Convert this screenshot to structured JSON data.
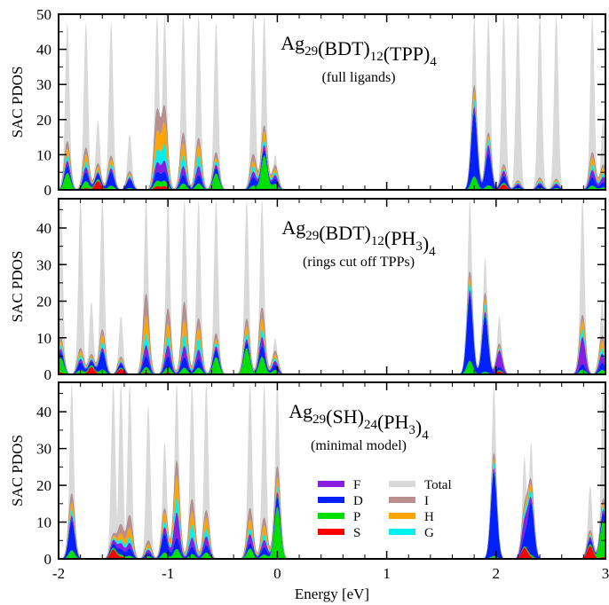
{
  "chart_data": {
    "type": "area",
    "xlabel": "Energy [eV]",
    "ylabel": "SAC PDOS",
    "xlim": [
      -2,
      3
    ],
    "x_ticks": [
      "-2",
      "-1",
      "0",
      "1",
      "2",
      "3"
    ],
    "stack_order": [
      "S",
      "P",
      "D",
      "F",
      "G",
      "H",
      "I"
    ],
    "colors": {
      "S": "#ff0000",
      "P": "#00e000",
      "D": "#0020ff",
      "F": "#8a1ee0",
      "G": "#00f0f0",
      "H": "#ffa500",
      "I": "#bc8f8f",
      "Total": "#d9d9d9"
    },
    "legend": {
      "placement": "bottom-panel-center",
      "left": [
        "F",
        "D",
        "P",
        "S"
      ],
      "right": [
        "Total",
        "I",
        "H",
        "G"
      ]
    },
    "panels": [
      {
        "id": "full",
        "title_main": "Ag",
        "title_parts": [
          {
            "t": "Ag"
          },
          {
            "t": "29",
            "sub": true
          },
          {
            "t": "(BDT)"
          },
          {
            "t": "12",
            "sub": true
          },
          {
            "t": "(TPP)"
          },
          {
            "t": "4",
            "sub": true
          }
        ],
        "subtitle": "(full ligands)",
        "ylim": [
          0,
          50
        ],
        "y_ticks": [
          0,
          10,
          20,
          30,
          40,
          50
        ],
        "peaks": [
          {
            "e": -1.92,
            "S": 0.3,
            "P": 4.5,
            "D": 2.0,
            "F": 1.5,
            "G": 1.5,
            "H": 2.0,
            "I": 2.0,
            "T": 48
          },
          {
            "e": -1.75,
            "S": 0.5,
            "P": 2.0,
            "D": 2.5,
            "F": 1.5,
            "G": 1.5,
            "H": 2.0,
            "I": 2.0,
            "T": 48
          },
          {
            "e": -1.64,
            "S": 2.5,
            "P": 0.5,
            "D": 1.5,
            "F": 0.5,
            "G": 0.5,
            "H": 1.0,
            "I": 1.0,
            "T": 20
          },
          {
            "e": -1.52,
            "S": 0.2,
            "P": 1.0,
            "D": 4.0,
            "F": 1.0,
            "G": 1.0,
            "H": 1.5,
            "I": 1.0,
            "T": 48
          },
          {
            "e": -1.35,
            "S": 0.0,
            "P": 0.5,
            "D": 2.5,
            "F": 0.5,
            "G": 0.5,
            "H": 0.5,
            "I": 0.8,
            "T": 16
          },
          {
            "e": -1.1,
            "S": 1.0,
            "P": 1.5,
            "D": 2.5,
            "F": 2.5,
            "G": 3.5,
            "H": 5.0,
            "I": 6.0,
            "T": 50
          },
          {
            "e": -1.03,
            "S": 1.0,
            "P": 1.5,
            "D": 2.5,
            "F": 3.0,
            "G": 4.5,
            "H": 6.0,
            "I": 4.5,
            "T": 50
          },
          {
            "e": -0.86,
            "S": 0.3,
            "P": 1.5,
            "D": 2.5,
            "F": 2.5,
            "G": 3.0,
            "H": 3.5,
            "I": 3.0,
            "T": 50
          },
          {
            "e": -0.72,
            "S": 0.3,
            "P": 1.5,
            "D": 2.5,
            "F": 2.5,
            "G": 3.0,
            "H": 3.0,
            "I": 2.0,
            "T": 50
          },
          {
            "e": -0.56,
            "S": 0.2,
            "P": 4.5,
            "D": 1.5,
            "F": 1.0,
            "G": 1.0,
            "H": 1.0,
            "I": 1.5,
            "T": 48
          },
          {
            "e": -0.22,
            "S": 0.2,
            "P": 1.0,
            "D": 2.5,
            "F": 1.5,
            "G": 1.5,
            "H": 1.5,
            "I": 2.0,
            "T": 50
          },
          {
            "e": -0.12,
            "S": 0.3,
            "P": 9.5,
            "D": 1.5,
            "F": 1.5,
            "G": 1.5,
            "H": 2.5,
            "I": 1.5,
            "T": 50
          },
          {
            "e": -0.02,
            "S": 0.2,
            "P": 1.5,
            "D": 1.5,
            "F": 1.0,
            "G": 0.8,
            "H": 1.0,
            "I": 1.0,
            "T": 10
          },
          {
            "e": 1.8,
            "S": 0.3,
            "P": 3.5,
            "D": 18.0,
            "F": 2.0,
            "G": 2.0,
            "H": 2.0,
            "I": 2.0,
            "T": 50
          },
          {
            "e": 1.93,
            "S": 0.3,
            "P": 1.0,
            "D": 9.0,
            "F": 2.5,
            "G": 1.5,
            "H": 1.0,
            "I": 1.0,
            "T": 50
          },
          {
            "e": 2.07,
            "S": 1.5,
            "P": 0.5,
            "D": 2.0,
            "F": 1.5,
            "G": 0.5,
            "H": 0.5,
            "I": 0.8,
            "T": 50
          },
          {
            "e": 2.2,
            "S": 0.2,
            "P": 0.3,
            "D": 0.8,
            "F": 0.5,
            "G": 0.3,
            "H": 0.3,
            "I": 0.3,
            "T": 50
          },
          {
            "e": 2.4,
            "S": 0.2,
            "P": 0.3,
            "D": 1.0,
            "F": 0.5,
            "G": 0.5,
            "H": 0.5,
            "I": 0.5,
            "T": 50
          },
          {
            "e": 2.55,
            "S": 0.2,
            "P": 0.3,
            "D": 0.8,
            "F": 0.5,
            "G": 0.5,
            "H": 0.5,
            "I": 0.3,
            "T": 50
          },
          {
            "e": 2.88,
            "S": 0.2,
            "P": 1.0,
            "D": 2.5,
            "F": 2.0,
            "G": 1.5,
            "H": 2.0,
            "I": 1.5,
            "T": 50
          },
          {
            "e": 2.98,
            "S": 0.2,
            "P": 0.5,
            "D": 1.5,
            "F": 1.5,
            "G": 1.0,
            "H": 1.5,
            "I": 1.0,
            "T": 20
          }
        ]
      },
      {
        "id": "cut",
        "title_parts": [
          {
            "t": "Ag"
          },
          {
            "t": "29",
            "sub": true
          },
          {
            "t": "(BDT)"
          },
          {
            "t": "12",
            "sub": true
          },
          {
            "t": "(PH"
          },
          {
            "t": "3",
            "sub": true
          },
          {
            "t": ")"
          },
          {
            "t": "4",
            "sub": true
          }
        ],
        "subtitle": "(rings cut off TPPs)",
        "ylim": [
          0,
          48
        ],
        "y_ticks": [
          0,
          10,
          20,
          30,
          40
        ],
        "peaks": [
          {
            "e": -1.98,
            "S": 0.5,
            "P": 4.0,
            "D": 1.5,
            "F": 1.0,
            "G": 1.0,
            "H": 1.0,
            "I": 1.0,
            "T": 48
          },
          {
            "e": -1.8,
            "S": 0.2,
            "P": 1.0,
            "D": 2.0,
            "F": 1.0,
            "G": 1.0,
            "H": 1.0,
            "I": 1.0,
            "T": 48
          },
          {
            "e": -1.7,
            "S": 2.0,
            "P": 0.5,
            "D": 1.0,
            "F": 0.5,
            "G": 0.5,
            "H": 0.5,
            "I": 0.5,
            "T": 20
          },
          {
            "e": -1.6,
            "S": 0.3,
            "P": 1.0,
            "D": 5.0,
            "F": 1.0,
            "G": 1.5,
            "H": 2.0,
            "I": 1.5,
            "T": 48
          },
          {
            "e": -1.43,
            "S": 1.5,
            "P": 0.3,
            "D": 1.0,
            "F": 0.5,
            "G": 0.5,
            "H": 0.5,
            "I": 0.5,
            "T": 16
          },
          {
            "e": -1.2,
            "S": 0.5,
            "P": 1.5,
            "D": 3.0,
            "F": 3.0,
            "G": 3.0,
            "H": 5.0,
            "I": 6.0,
            "T": 48
          },
          {
            "e": -1.0,
            "S": 0.5,
            "P": 1.5,
            "D": 3.0,
            "F": 3.0,
            "G": 2.5,
            "H": 3.5,
            "I": 4.0,
            "T": 48
          },
          {
            "e": -0.85,
            "S": 0.3,
            "P": 1.5,
            "D": 3.0,
            "F": 3.0,
            "G": 3.0,
            "H": 4.0,
            "I": 5.0,
            "T": 48
          },
          {
            "e": -0.72,
            "S": 0.3,
            "P": 1.5,
            "D": 2.5,
            "F": 2.5,
            "G": 3.0,
            "H": 3.0,
            "I": 2.5,
            "T": 48
          },
          {
            "e": -0.56,
            "S": 0.2,
            "P": 4.5,
            "D": 2.0,
            "F": 1.0,
            "G": 1.0,
            "H": 1.0,
            "I": 1.5,
            "T": 48
          },
          {
            "e": -0.28,
            "S": 0.2,
            "P": 7.0,
            "D": 1.5,
            "F": 1.0,
            "G": 1.5,
            "H": 2.0,
            "I": 2.0,
            "T": 48
          },
          {
            "e": -0.14,
            "S": 0.3,
            "P": 4.5,
            "D": 3.0,
            "F": 2.5,
            "G": 2.0,
            "H": 3.0,
            "I": 3.0,
            "T": 48
          },
          {
            "e": -0.02,
            "S": 0.2,
            "P": 1.0,
            "D": 1.5,
            "F": 1.0,
            "G": 0.8,
            "H": 1.0,
            "I": 1.0,
            "T": 10
          },
          {
            "e": 1.76,
            "S": 0.2,
            "P": 3.5,
            "D": 18.0,
            "F": 1.5,
            "G": 2.0,
            "H": 1.5,
            "I": 1.5,
            "T": 48
          },
          {
            "e": 1.9,
            "S": 0.2,
            "P": 0.5,
            "D": 15.0,
            "F": 1.5,
            "G": 2.0,
            "H": 1.5,
            "I": 1.5,
            "T": 32
          },
          {
            "e": 2.03,
            "S": 0.8,
            "P": 0.3,
            "D": 1.0,
            "F": 4.5,
            "G": 0.5,
            "H": 0.5,
            "I": 0.8,
            "T": 16
          },
          {
            "e": 2.79,
            "S": 0.3,
            "P": 1.0,
            "D": 1.5,
            "F": 7.5,
            "G": 2.0,
            "H": 2.5,
            "I": 1.5,
            "T": 48
          },
          {
            "e": 2.97,
            "S": 0.2,
            "P": 1.0,
            "D": 2.0,
            "F": 2.5,
            "G": 1.5,
            "H": 2.0,
            "I": 1.5,
            "T": 20
          }
        ]
      },
      {
        "id": "minimal",
        "title_parts": [
          {
            "t": "Ag"
          },
          {
            "t": "29",
            "sub": true
          },
          {
            "t": "(SH)"
          },
          {
            "t": "24",
            "sub": true
          },
          {
            "t": "(PH"
          },
          {
            "t": "3",
            "sub": true
          },
          {
            "t": ")"
          },
          {
            "t": "4",
            "sub": true
          }
        ],
        "subtitle": "(minimal model)",
        "ylim": [
          0,
          48
        ],
        "y_ticks": [
          0,
          10,
          20,
          30,
          40
        ],
        "peaks": [
          {
            "e": -1.88,
            "S": 0.3,
            "P": 2.0,
            "D": 8.0,
            "F": 1.5,
            "G": 1.5,
            "H": 2.0,
            "I": 2.5,
            "T": 48
          },
          {
            "e": -1.5,
            "S": 2.5,
            "P": 0.5,
            "D": 1.0,
            "F": 1.0,
            "G": 0.5,
            "H": 0.5,
            "I": 0.5,
            "T": 48
          },
          {
            "e": -1.43,
            "S": 0.5,
            "P": 0.5,
            "D": 1.5,
            "F": 1.5,
            "G": 1.0,
            "H": 1.5,
            "I": 2.5,
            "T": 48
          },
          {
            "e": -1.35,
            "S": 0.3,
            "P": 0.5,
            "D": 2.0,
            "F": 1.5,
            "G": 1.5,
            "H": 2.5,
            "I": 3.5,
            "T": 48
          },
          {
            "e": -1.18,
            "S": 0.2,
            "P": 0.5,
            "D": 1.0,
            "F": 0.8,
            "G": 0.5,
            "H": 1.0,
            "I": 1.0,
            "T": 42
          },
          {
            "e": -1.03,
            "S": 0.2,
            "P": 1.5,
            "D": 5.0,
            "F": 2.0,
            "G": 1.5,
            "H": 2.5,
            "I": 1.0,
            "T": 32
          },
          {
            "e": -0.92,
            "S": 0.2,
            "P": 2.5,
            "D": 3.0,
            "F": 7.0,
            "G": 4.0,
            "H": 6.0,
            "I": 4.0,
            "T": 48
          },
          {
            "e": -0.78,
            "S": 0.3,
            "P": 1.0,
            "D": 2.0,
            "F": 2.5,
            "G": 3.5,
            "H": 3.5,
            "I": 3.5,
            "T": 48
          },
          {
            "e": -0.65,
            "S": 0.2,
            "P": 1.5,
            "D": 2.0,
            "F": 2.5,
            "G": 2.0,
            "H": 3.0,
            "I": 2.0,
            "T": 48
          },
          {
            "e": -0.25,
            "S": 0.3,
            "P": 2.5,
            "D": 1.5,
            "F": 2.5,
            "G": 1.5,
            "H": 2.5,
            "I": 3.0,
            "T": 48
          },
          {
            "e": -0.12,
            "S": 0.2,
            "P": 1.0,
            "D": 2.0,
            "F": 2.0,
            "G": 1.5,
            "H": 2.5,
            "I": 2.0,
            "T": 48
          },
          {
            "e": 0.0,
            "S": 0.2,
            "P": 14.0,
            "D": 2.5,
            "F": 1.5,
            "G": 1.5,
            "H": 2.5,
            "I": 3.0,
            "T": 48
          },
          {
            "e": 1.98,
            "S": 0.3,
            "P": 0.5,
            "D": 23.0,
            "F": 1.0,
            "G": 1.5,
            "H": 1.0,
            "I": 1.5,
            "T": 48
          },
          {
            "e": 2.26,
            "S": 3.0,
            "P": 0.3,
            "D": 2.0,
            "F": 4.5,
            "G": 1.5,
            "H": 1.0,
            "I": 1.0,
            "T": 28
          },
          {
            "e": 2.32,
            "S": 0.3,
            "P": 0.5,
            "D": 14.0,
            "F": 1.0,
            "G": 1.5,
            "H": 1.5,
            "I": 1.5,
            "T": 32
          },
          {
            "e": 2.86,
            "S": 3.5,
            "P": 0.5,
            "D": 1.0,
            "F": 1.0,
            "G": 0.5,
            "H": 0.5,
            "I": 0.8,
            "T": 20
          },
          {
            "e": 2.98,
            "S": 0.5,
            "P": 10.0,
            "D": 2.0,
            "F": 1.0,
            "G": 1.0,
            "H": 1.0,
            "I": 1.0,
            "T": 48
          }
        ]
      }
    ]
  }
}
